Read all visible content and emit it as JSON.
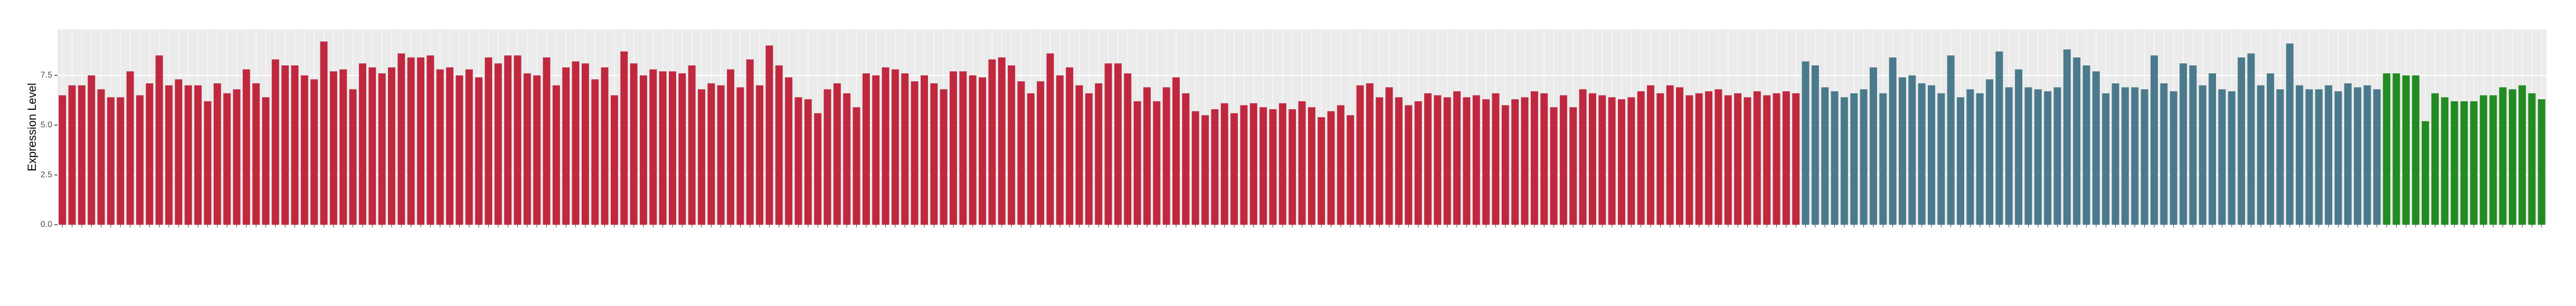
{
  "chart_data": {
    "type": "bar",
    "y_label": "Expression Level",
    "ylim": [
      0,
      9.8
    ],
    "yticks": [
      {
        "value": 0,
        "label": "0.0"
      },
      {
        "value": 2.5,
        "label": "2.5"
      },
      {
        "value": 5,
        "label": "5.0"
      },
      {
        "value": 7.5,
        "label": "7.5"
      }
    ],
    "grid": true,
    "series": [
      {
        "color": "#c0283f",
        "values": [
          6.5,
          7.0,
          7.0,
          7.5,
          6.8,
          6.4,
          6.4,
          7.7,
          6.5,
          7.1,
          8.5,
          7.0,
          7.3,
          7.0,
          7.0,
          6.2,
          7.1,
          6.6,
          6.8,
          7.8,
          7.1,
          6.4,
          8.3,
          8.0,
          8.0,
          7.5,
          7.3,
          9.2,
          7.7,
          7.8,
          6.8,
          8.1,
          7.9,
          7.6,
          7.9,
          8.6,
          8.4,
          8.4,
          8.5,
          7.8,
          7.9,
          7.5,
          7.8,
          7.4,
          8.4,
          8.1,
          8.5,
          8.5,
          7.6,
          7.5,
          8.4,
          7.0,
          7.9,
          8.2,
          8.1,
          7.3,
          7.9,
          6.5,
          8.7,
          8.1,
          7.5,
          7.8,
          7.7,
          7.7,
          7.6,
          8.0,
          6.8,
          7.1,
          7.0,
          7.8,
          6.9,
          8.3,
          7.0,
          9.0,
          8.0,
          7.4,
          6.4,
          6.3,
          5.6,
          6.8,
          7.1,
          6.6,
          5.9,
          7.6,
          7.5,
          7.9,
          7.8,
          7.6,
          7.2,
          7.5,
          7.1,
          6.8,
          7.7,
          7.7,
          7.5,
          7.4,
          8.3,
          8.4,
          8.0,
          7.2,
          6.6,
          7.2,
          8.6,
          7.5,
          7.9,
          7.0,
          6.6,
          7.1,
          8.1,
          8.1,
          7.6,
          6.2,
          6.9,
          6.2,
          6.9,
          7.4,
          6.6,
          5.7,
          5.5,
          5.8,
          6.1,
          5.6,
          6.0,
          6.1,
          5.9,
          5.8,
          6.1,
          5.8,
          6.2,
          5.9,
          5.4,
          5.7,
          6.0,
          5.5,
          7.0,
          7.1,
          6.4,
          6.9,
          6.4,
          6.0,
          6.2,
          6.6,
          6.5,
          6.4,
          6.7,
          6.4,
          6.5,
          6.3,
          6.6,
          6.0,
          6.3,
          6.4,
          6.7,
          6.6,
          5.9,
          6.5,
          5.9,
          6.8,
          6.6,
          6.5,
          6.4,
          6.3,
          6.4,
          6.7,
          7.0,
          6.6,
          7.0,
          6.9,
          6.5,
          6.6,
          6.7,
          6.8,
          6.5,
          6.6,
          6.4,
          6.7,
          6.5,
          6.6,
          6.7,
          6.6
        ]
      },
      {
        "color": "#4a7a8c",
        "values": [
          8.2,
          8.0,
          6.9,
          6.7,
          6.4,
          6.6,
          6.8,
          7.9,
          6.6,
          8.4,
          7.4,
          7.5,
          7.1,
          7.0,
          6.6,
          8.5,
          6.4,
          6.8,
          6.6,
          7.3,
          8.7,
          6.9,
          7.8,
          6.9,
          6.8,
          6.7,
          6.9,
          8.8,
          8.4,
          8.0,
          7.7,
          6.6,
          7.1,
          6.9,
          6.9,
          6.8,
          8.5,
          7.1,
          6.7,
          8.1,
          8.0,
          7.0,
          7.6,
          6.8,
          6.7,
          8.4,
          8.6,
          7.0,
          7.6,
          6.8,
          9.1,
          7.0,
          6.8,
          6.8,
          7.0,
          6.7,
          7.1,
          6.9,
          7.0,
          6.8
        ]
      },
      {
        "color": "#228b22",
        "values": [
          7.6,
          7.6,
          7.5,
          7.5,
          5.2,
          6.6,
          6.4,
          6.2,
          6.2,
          6.2,
          6.5,
          6.5,
          6.9,
          6.8,
          7.0,
          6.6,
          6.3
        ]
      }
    ]
  }
}
